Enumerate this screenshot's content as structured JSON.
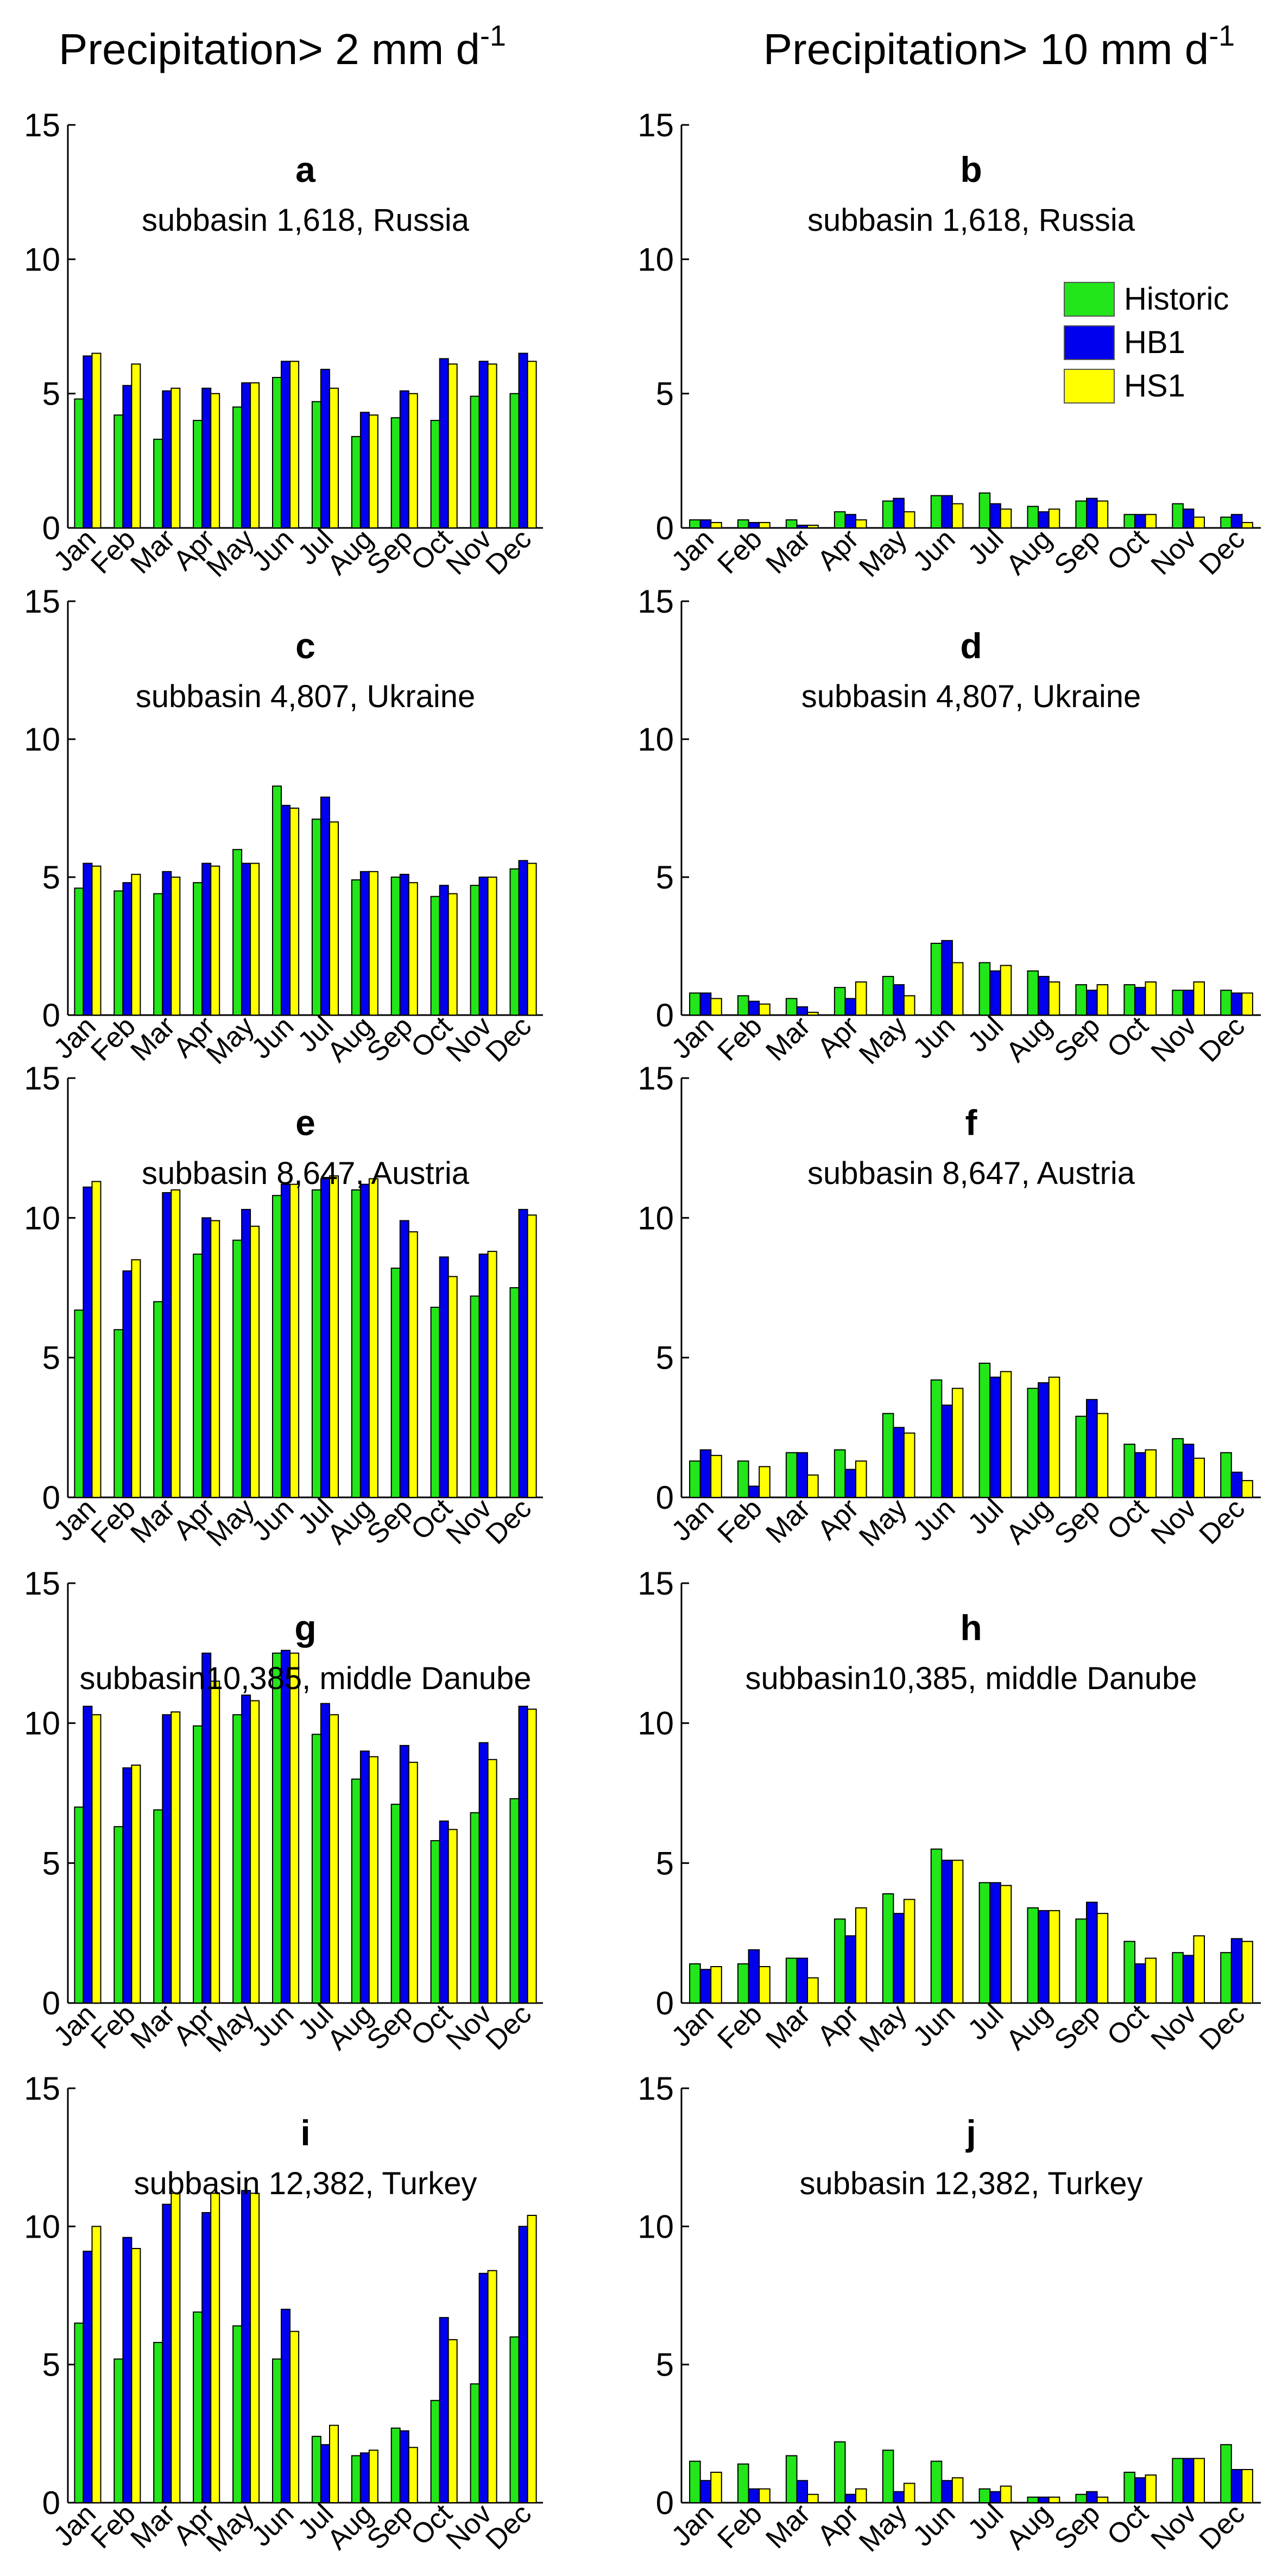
{
  "colors": {
    "Historic": "#22e61a",
    "HB1": "#0000ee",
    "HS1": "#ffff00",
    "axis": "#000000",
    "bar_edge": "#000000"
  },
  "columns": {
    "left": {
      "base": "Precipitation> 2 mm d",
      "sup": "-1"
    },
    "right": {
      "base": "Precipitation> 10 mm d",
      "sup": "-1"
    }
  },
  "legend": [
    "Historic",
    "HB1",
    "HS1"
  ],
  "chart_data": [
    {
      "id": "a",
      "type": "bar",
      "letter": "a",
      "subtitle": "subbasin 1,618, Russia",
      "categories": [
        "Jan",
        "Feb",
        "Mar",
        "Apr",
        "May",
        "Jun",
        "Jul",
        "Aug",
        "Sep",
        "Oct",
        "Nov",
        "Dec"
      ],
      "yticks": [
        "0",
        "5",
        "10",
        "15"
      ],
      "ylim": [
        0,
        15
      ],
      "legend_position": "none",
      "series": [
        {
          "name": "Historic",
          "values": [
            4.8,
            4.2,
            3.3,
            4.0,
            4.5,
            5.6,
            4.7,
            3.4,
            4.1,
            4.0,
            4.9,
            5.0
          ]
        },
        {
          "name": "HB1",
          "values": [
            6.4,
            5.3,
            5.1,
            5.2,
            5.4,
            6.2,
            5.9,
            4.3,
            5.1,
            6.3,
            6.2,
            6.5
          ]
        },
        {
          "name": "HS1",
          "values": [
            6.5,
            6.1,
            5.2,
            5.0,
            5.4,
            6.2,
            5.2,
            4.2,
            5.0,
            6.1,
            6.1,
            6.2
          ]
        }
      ]
    },
    {
      "id": "b",
      "type": "bar",
      "letter": "b",
      "subtitle": "subbasin 1,618, Russia",
      "categories": [
        "Jan",
        "Feb",
        "Mar",
        "Apr",
        "May",
        "Jun",
        "Jul",
        "Aug",
        "Sep",
        "Oct",
        "Nov",
        "Dec"
      ],
      "yticks": [
        "0",
        "5",
        "10",
        "15"
      ],
      "ylim": [
        0,
        15
      ],
      "legend_position": "top-right",
      "series": [
        {
          "name": "Historic",
          "values": [
            0.3,
            0.3,
            0.3,
            0.6,
            1.0,
            1.2,
            1.3,
            0.8,
            1.0,
            0.5,
            0.9,
            0.4
          ]
        },
        {
          "name": "HB1",
          "values": [
            0.3,
            0.2,
            0.1,
            0.5,
            1.1,
            1.2,
            0.9,
            0.6,
            1.1,
            0.5,
            0.7,
            0.5
          ]
        },
        {
          "name": "HS1",
          "values": [
            0.2,
            0.2,
            0.1,
            0.3,
            0.6,
            0.9,
            0.7,
            0.7,
            1.0,
            0.5,
            0.4,
            0.2
          ]
        }
      ]
    },
    {
      "id": "c",
      "type": "bar",
      "letter": "c",
      "subtitle": "subbasin 4,807, Ukraine",
      "categories": [
        "Jan",
        "Feb",
        "Mar",
        "Apr",
        "May",
        "Jun",
        "Jul",
        "Aug",
        "Sep",
        "Oct",
        "Nov",
        "Dec"
      ],
      "yticks": [
        "0",
        "5",
        "10",
        "15"
      ],
      "ylim": [
        0,
        15
      ],
      "legend_position": "none",
      "series": [
        {
          "name": "Historic",
          "values": [
            4.6,
            4.5,
            4.4,
            4.8,
            6.0,
            8.3,
            7.1,
            4.9,
            5.0,
            4.3,
            4.7,
            5.3
          ]
        },
        {
          "name": "HB1",
          "values": [
            5.5,
            4.8,
            5.2,
            5.5,
            5.5,
            7.6,
            7.9,
            5.2,
            5.1,
            4.7,
            5.0,
            5.6
          ]
        },
        {
          "name": "HS1",
          "values": [
            5.4,
            5.1,
            5.0,
            5.4,
            5.5,
            7.5,
            7.0,
            5.2,
            4.8,
            4.4,
            5.0,
            5.5
          ]
        }
      ]
    },
    {
      "id": "d",
      "type": "bar",
      "letter": "d",
      "subtitle": "subbasin 4,807, Ukraine",
      "categories": [
        "Jan",
        "Feb",
        "Mar",
        "Apr",
        "May",
        "Jun",
        "Jul",
        "Aug",
        "Sep",
        "Oct",
        "Nov",
        "Dec"
      ],
      "yticks": [
        "0",
        "5",
        "10",
        "15"
      ],
      "ylim": [
        0,
        15
      ],
      "legend_position": "none",
      "series": [
        {
          "name": "Historic",
          "values": [
            0.8,
            0.7,
            0.6,
            1.0,
            1.4,
            2.6,
            1.9,
            1.6,
            1.1,
            1.1,
            0.9,
            0.9
          ]
        },
        {
          "name": "HB1",
          "values": [
            0.8,
            0.5,
            0.3,
            0.6,
            1.1,
            2.7,
            1.6,
            1.4,
            0.9,
            1.0,
            0.9,
            0.8
          ]
        },
        {
          "name": "HS1",
          "values": [
            0.6,
            0.4,
            0.1,
            1.2,
            0.7,
            1.9,
            1.8,
            1.2,
            1.1,
            1.2,
            1.2,
            0.8
          ]
        }
      ]
    },
    {
      "id": "e",
      "type": "bar",
      "letter": "e",
      "subtitle": "subbasin 8,647, Austria",
      "categories": [
        "Jan",
        "Feb",
        "Mar",
        "Apr",
        "May",
        "Jun",
        "Jul",
        "Aug",
        "Sep",
        "Oct",
        "Nov",
        "Dec"
      ],
      "yticks": [
        "0",
        "5",
        "10",
        "15"
      ],
      "ylim": [
        0,
        15
      ],
      "legend_position": "none",
      "series": [
        {
          "name": "Historic",
          "values": [
            6.7,
            6.0,
            7.0,
            8.7,
            9.2,
            10.8,
            11.0,
            11.0,
            8.2,
            6.8,
            7.2,
            7.5
          ]
        },
        {
          "name": "HB1",
          "values": [
            11.1,
            8.1,
            10.9,
            10.0,
            10.3,
            11.2,
            11.4,
            11.2,
            9.9,
            8.6,
            8.7,
            10.3
          ]
        },
        {
          "name": "HS1",
          "values": [
            11.3,
            8.5,
            11.0,
            9.9,
            9.7,
            11.2,
            11.5,
            11.4,
            9.5,
            7.9,
            8.8,
            10.1
          ]
        }
      ]
    },
    {
      "id": "f",
      "type": "bar",
      "letter": "f",
      "subtitle": "subbasin 8,647, Austria",
      "categories": [
        "Jan",
        "Feb",
        "Mar",
        "Apr",
        "May",
        "Jun",
        "Jul",
        "Aug",
        "Sep",
        "Oct",
        "Nov",
        "Dec"
      ],
      "yticks": [
        "0",
        "5",
        "10",
        "15"
      ],
      "ylim": [
        0,
        15
      ],
      "legend_position": "none",
      "series": [
        {
          "name": "Historic",
          "values": [
            1.3,
            1.3,
            1.6,
            1.7,
            3.0,
            4.2,
            4.8,
            3.9,
            2.9,
            1.9,
            2.1,
            1.6
          ]
        },
        {
          "name": "HB1",
          "values": [
            1.7,
            0.4,
            1.6,
            1.0,
            2.5,
            3.3,
            4.3,
            4.1,
            3.5,
            1.6,
            1.9,
            0.9
          ]
        },
        {
          "name": "HS1",
          "values": [
            1.5,
            1.1,
            0.8,
            1.3,
            2.3,
            3.9,
            4.5,
            4.3,
            3.0,
            1.7,
            1.4,
            0.6
          ]
        }
      ]
    },
    {
      "id": "g",
      "type": "bar",
      "letter": "g",
      "subtitle": "subbasin10,385, middle Danube",
      "categories": [
        "Jan",
        "Feb",
        "Mar",
        "Apr",
        "May",
        "Jun",
        "Jul",
        "Aug",
        "Sep",
        "Oct",
        "Nov",
        "Dec"
      ],
      "yticks": [
        "0",
        "5",
        "10",
        "15"
      ],
      "ylim": [
        0,
        15
      ],
      "legend_position": "none",
      "series": [
        {
          "name": "Historic",
          "values": [
            7.0,
            6.3,
            6.9,
            9.9,
            10.3,
            12.5,
            9.6,
            8.0,
            7.1,
            5.8,
            6.8,
            7.3
          ]
        },
        {
          "name": "HB1",
          "values": [
            10.6,
            8.4,
            10.3,
            12.5,
            11.0,
            12.6,
            10.7,
            9.0,
            9.2,
            6.5,
            9.3,
            10.6
          ]
        },
        {
          "name": "HS1",
          "values": [
            10.3,
            8.5,
            10.4,
            11.5,
            10.8,
            12.5,
            10.3,
            8.8,
            8.6,
            6.2,
            8.7,
            10.5
          ]
        }
      ]
    },
    {
      "id": "h",
      "type": "bar",
      "letter": "h",
      "subtitle": "subbasin10,385, middle Danube",
      "categories": [
        "Jan",
        "Feb",
        "Mar",
        "Apr",
        "May",
        "Jun",
        "Jul",
        "Aug",
        "Sep",
        "Oct",
        "Nov",
        "Dec"
      ],
      "yticks": [
        "0",
        "5",
        "10",
        "15"
      ],
      "ylim": [
        0,
        15
      ],
      "legend_position": "none",
      "series": [
        {
          "name": "Historic",
          "values": [
            1.4,
            1.4,
            1.6,
            3.0,
            3.9,
            5.5,
            4.3,
            3.4,
            3.0,
            2.2,
            1.8,
            1.8
          ]
        },
        {
          "name": "HB1",
          "values": [
            1.2,
            1.9,
            1.6,
            2.4,
            3.2,
            5.1,
            4.3,
            3.3,
            3.6,
            1.4,
            1.7,
            2.3
          ]
        },
        {
          "name": "HS1",
          "values": [
            1.3,
            1.3,
            0.9,
            3.4,
            3.7,
            5.1,
            4.2,
            3.3,
            3.2,
            1.6,
            2.4,
            2.2
          ]
        }
      ]
    },
    {
      "id": "i",
      "type": "bar",
      "letter": "i",
      "subtitle": "subbasin 12,382, Turkey",
      "categories": [
        "Jan",
        "Feb",
        "Mar",
        "Apr",
        "May",
        "Jun",
        "Jul",
        "Aug",
        "Sep",
        "Oct",
        "Nov",
        "Dec"
      ],
      "yticks": [
        "0",
        "5",
        "10",
        "15"
      ],
      "ylim": [
        0,
        15
      ],
      "legend_position": "none",
      "series": [
        {
          "name": "Historic",
          "values": [
            6.5,
            5.2,
            5.8,
            6.9,
            6.4,
            5.2,
            2.4,
            1.7,
            2.7,
            3.7,
            4.3,
            6.0
          ]
        },
        {
          "name": "HB1",
          "values": [
            9.1,
            9.6,
            10.8,
            10.5,
            11.3,
            7.0,
            2.1,
            1.8,
            2.6,
            6.7,
            8.3,
            10.0
          ]
        },
        {
          "name": "HS1",
          "values": [
            10.0,
            9.2,
            11.2,
            11.2,
            11.2,
            6.2,
            2.8,
            1.9,
            2.0,
            5.9,
            8.4,
            10.4
          ]
        }
      ]
    },
    {
      "id": "j",
      "type": "bar",
      "letter": "j",
      "subtitle": "subbasin 12,382, Turkey",
      "categories": [
        "Jan",
        "Feb",
        "Mar",
        "Apr",
        "May",
        "Jun",
        "Jul",
        "Aug",
        "Sep",
        "Oct",
        "Nov",
        "Dec"
      ],
      "yticks": [
        "0",
        "5",
        "10",
        "15"
      ],
      "ylim": [
        0,
        15
      ],
      "legend_position": "none",
      "series": [
        {
          "name": "Historic",
          "values": [
            1.5,
            1.4,
            1.7,
            2.2,
            1.9,
            1.5,
            0.5,
            0.2,
            0.3,
            1.1,
            1.6,
            2.1
          ]
        },
        {
          "name": "HB1",
          "values": [
            0.8,
            0.5,
            0.8,
            0.3,
            0.4,
            0.8,
            0.4,
            0.2,
            0.4,
            0.9,
            1.6,
            1.2
          ]
        },
        {
          "name": "HS1",
          "values": [
            1.1,
            0.5,
            0.3,
            0.5,
            0.7,
            0.9,
            0.6,
            0.2,
            0.2,
            1.0,
            1.6,
            1.2
          ]
        }
      ]
    }
  ]
}
